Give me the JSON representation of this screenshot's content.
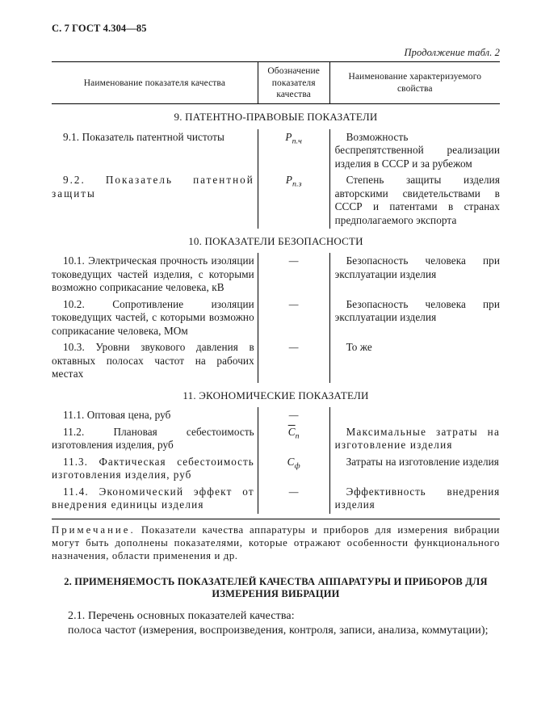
{
  "header": "С. 7 ГОСТ 4.304—85",
  "cont": "Продолжение табл. 2",
  "columns": {
    "c1": "Наименование показателя качества",
    "c2": "Обозначение показателя качества",
    "c3": "Наименование характеризуемого свойства"
  },
  "sections": {
    "s9": "9. ПАТЕНТНО-ПРАВОВЫЕ ПОКАЗАТЕЛИ",
    "s10": "10. ПОКАЗАТЕЛИ БЕЗОПАСНОСТИ",
    "s11": "11. ЭКОНОМИЧЕСКИЕ ПОКАЗАТЕЛИ"
  },
  "r91": {
    "a": "9.1. Показатель патентной чистоты",
    "b_pre": "P",
    "b_sub": "п.ч",
    "c": "Возможность беспрепятственной реализации изделия в СССР и за рубежом"
  },
  "r92": {
    "a": "9.2. Показатель патентной защиты",
    "b_pre": "P",
    "b_sub": "п.з",
    "c": "Степень защиты изделия авторскими свидетельствами в СССР и патентами в странах предполагаемого экспорта"
  },
  "r101": {
    "a": "10.1. Электрическая прочность изоляции токоведущих частей изделия, с которыми возможно соприкасание человека, кВ",
    "b": "—",
    "c": "Безопасность человека при эксплуатации изделия"
  },
  "r102": {
    "a": "10.2. Сопротивление изоляции токоведущих частей, с которыми возможно соприкасание человека, МОм",
    "b": "—",
    "c": "Безопасность человека при эксплуатации изделия"
  },
  "r103": {
    "a": "10.3. Уровни звукового давления в октавных полосах частот на рабочих местах",
    "b": "—",
    "c": "То же"
  },
  "r111": {
    "a": "11.1. Оптовая цена, руб",
    "b": "—",
    "c": ""
  },
  "r112": {
    "a": "11.2. Плановая себестоимость изготовления изделия, руб",
    "b_pre": "C",
    "b_sub": "п",
    "b_bar": true,
    "c": "Максимальные затраты на изготовление изделия"
  },
  "r113": {
    "a": "11.3. Фактическая себестоимость изготовления изделия, руб",
    "b_pre": "C",
    "b_sub": "ф",
    "c": "Затраты на изготовление изделия"
  },
  "r114": {
    "a": "11.4. Экономический эффект от внедрения единицы изделия",
    "b": "—",
    "c": "Эффективность внедрения изделия"
  },
  "note_lbl": "Примечание.",
  "note_txt": " Показатели качества аппаратуры и приборов для измерения вибрации могут быть дополнены показателями, которые отражают особенности функционального назначения, области применения и др.",
  "h2": "2. ПРИМЕНЯЕМОСТЬ ПОКАЗАТЕЛЕЙ КАЧЕСТВА АППАРАТУРЫ И ПРИБОРОВ ДЛЯ ИЗМЕРЕНИЯ ВИБРАЦИИ",
  "p21a": "2.1. Перечень основных показателей качества:",
  "p21b": "полоса частот (измерения, воспроизведения, контроля, записи, анализа, коммутации);"
}
